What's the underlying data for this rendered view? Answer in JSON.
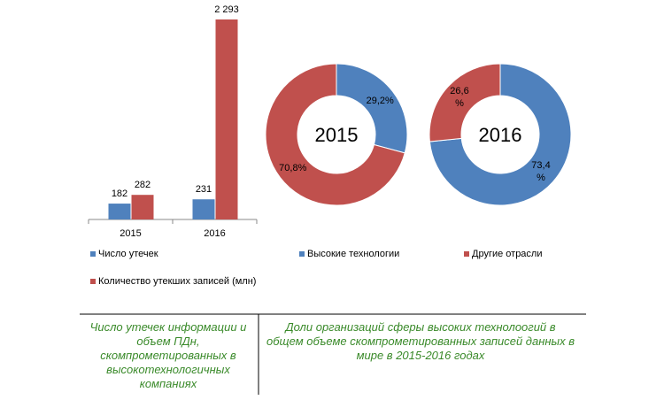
{
  "chart_data": [
    {
      "type": "bar",
      "categories": [
        "2015",
        "2016"
      ],
      "series": [
        {
          "name": "Число утечек",
          "color": "#4f81bd",
          "values": [
            182,
            231
          ]
        },
        {
          "name": "Количество утекших записей (млн)",
          "color": "#c0504d",
          "values": [
            282,
            2293
          ],
          "value_labels": [
            "282",
            "2 293"
          ]
        }
      ]
    },
    {
      "type": "doughnut",
      "categories": [
        "Высокие технологии",
        "Другие отрасли"
      ],
      "colors": [
        "#4f81bd",
        "#c0504d"
      ],
      "series": [
        {
          "name": "2015",
          "values": [
            29.2,
            70.8
          ],
          "value_labels": [
            "29,2%",
            "70,8%"
          ]
        },
        {
          "name": "2016",
          "values": [
            73.4,
            26.6
          ],
          "value_labels": [
            "73,4\n%",
            "26,6\n%"
          ]
        }
      ]
    }
  ],
  "captions": [
    "Число утечек информации и объем ПДн, скомпрометированных в высокотехнологичных компаниях",
    "Доли организаций сферы высоких технолоогий в общем объеме скомпрометированных записей данных в мире в 2015-2016 годах"
  ]
}
